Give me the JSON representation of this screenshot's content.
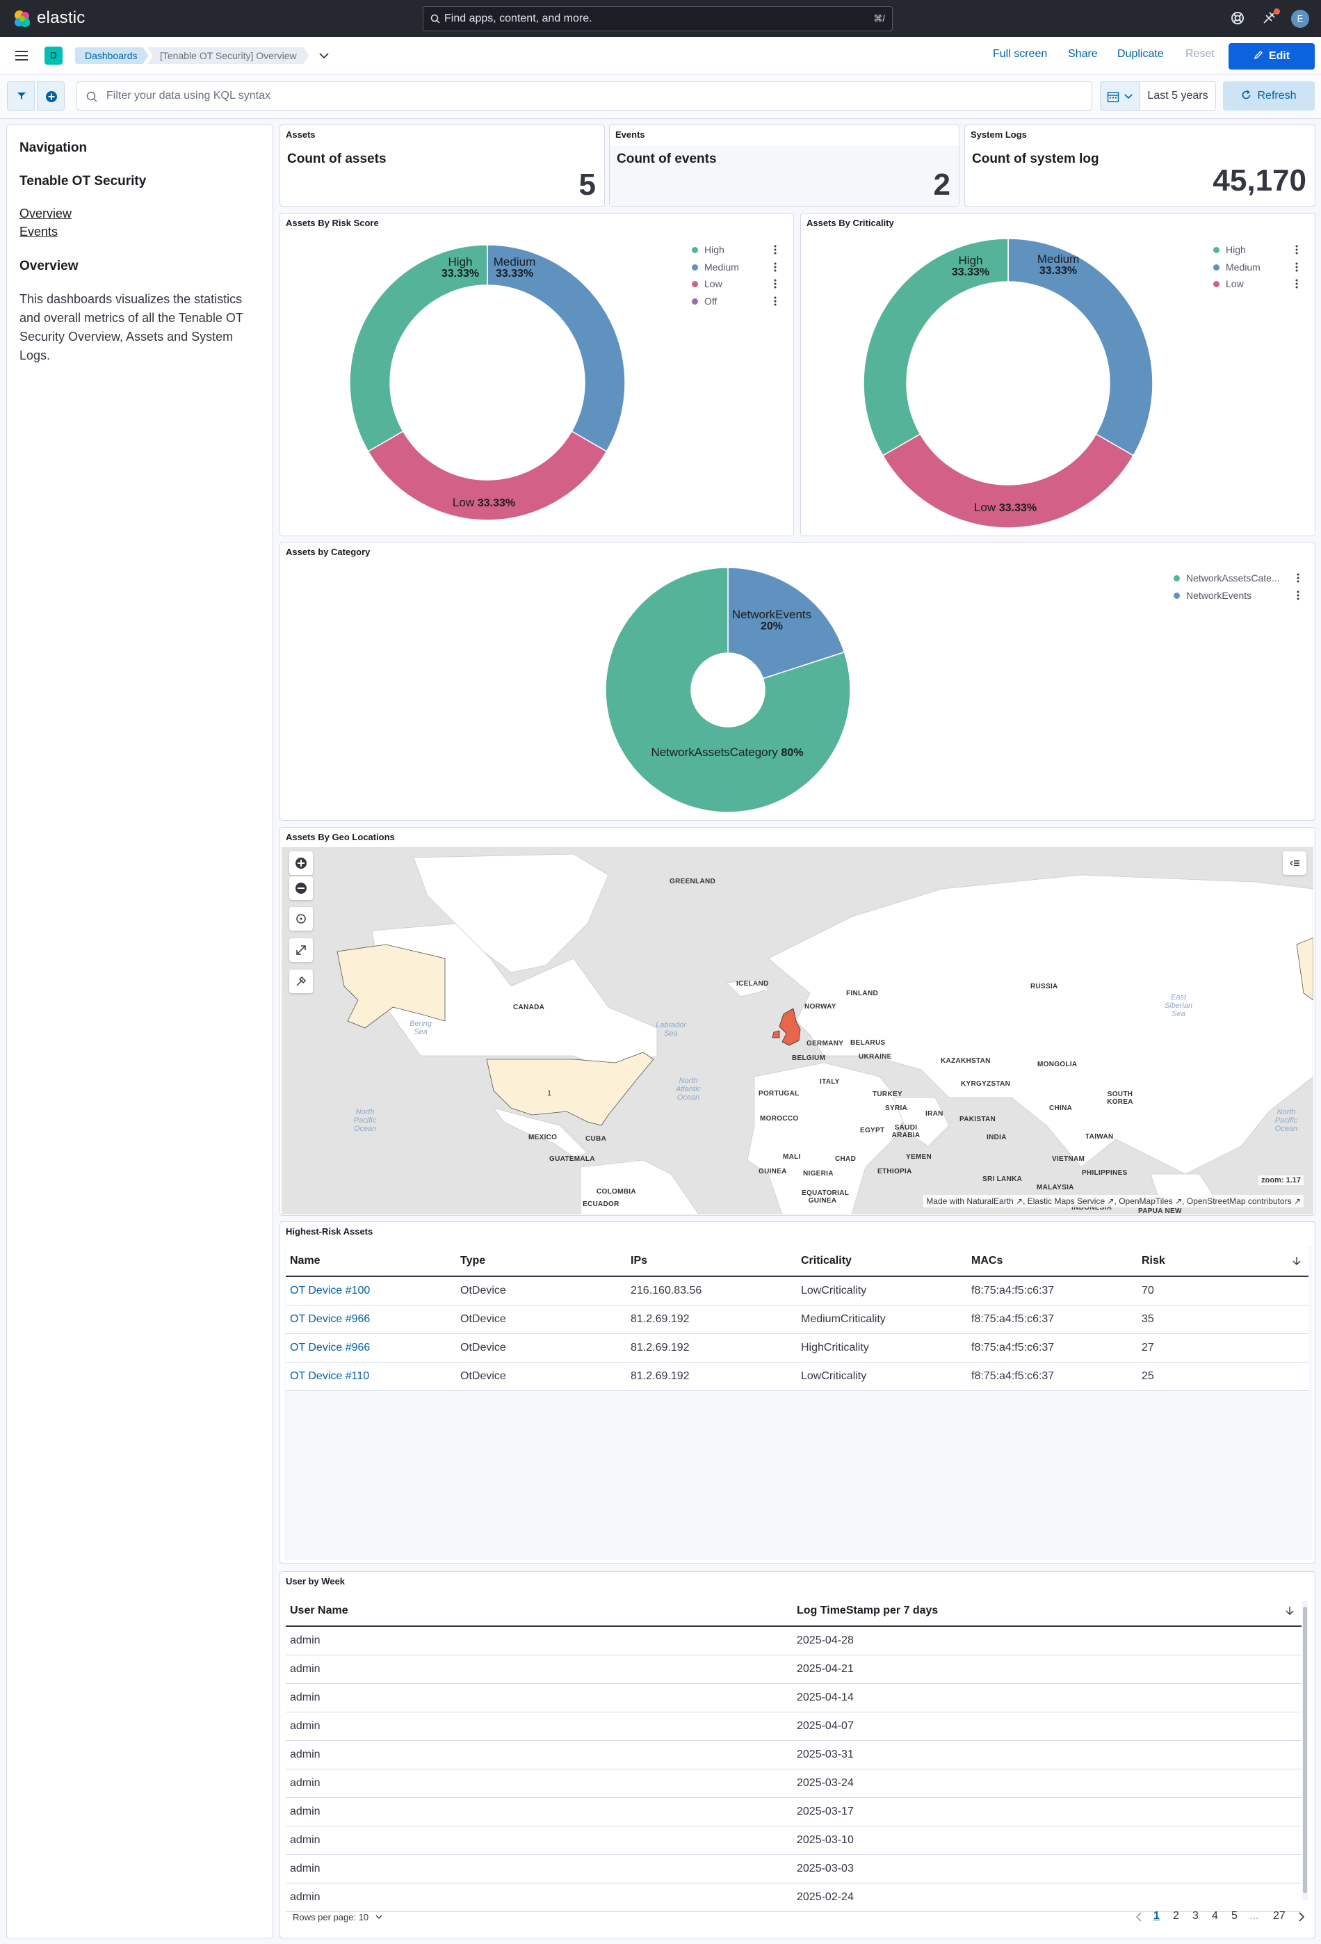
{
  "topbar": {
    "brand": "elastic",
    "search_placeholder": "Find apps, content, and more.",
    "search_shortcut": "⌘/",
    "avatar_initial": "E"
  },
  "header": {
    "app_badge": "D",
    "breadcrumbs": [
      "Dashboards",
      "[Tenable OT Security] Overview"
    ],
    "actions": {
      "fullscreen": "Full screen",
      "share": "Share",
      "duplicate": "Duplicate",
      "reset": "Reset",
      "edit": "Edit"
    }
  },
  "query": {
    "placeholder": "Filter your data using KQL syntax",
    "time_range": "Last 5 years",
    "refresh": "Refresh"
  },
  "nav_panel": {
    "heading": "Navigation",
    "subheading": "Tenable OT Security",
    "links": [
      "Overview",
      "Events"
    ],
    "section_title": "Overview",
    "description": "This dashboards visualizes the statistics and overall metrics of all the Tenable OT Security Overview, Assets and System Logs."
  },
  "metrics": [
    {
      "panel_title": "Assets",
      "label": "Count of assets",
      "value": "5"
    },
    {
      "panel_title": "Events",
      "label": "Count of events",
      "value": "2"
    },
    {
      "panel_title": "System Logs",
      "label": "Count of system log",
      "value": "45,170"
    }
  ],
  "colors": {
    "high": "#54b399",
    "medium": "#6092c0",
    "low": "#d36086",
    "off": "#9170b8",
    "accent": "#0b64dd",
    "link": "#0061a6"
  },
  "chart_data": [
    {
      "type": "pie",
      "title": "Assets By Risk Score",
      "slices": [
        {
          "label": "High",
          "value": 33.33,
          "pct": "33.33%"
        },
        {
          "label": "Medium",
          "value": 33.33,
          "pct": "33.33%"
        },
        {
          "label": "Low",
          "value": 33.33,
          "pct": "33.33%"
        }
      ],
      "legend": [
        "High",
        "Medium",
        "Low",
        "Off"
      ],
      "legend_position": "top-right"
    },
    {
      "type": "pie",
      "title": "Assets By Criticality",
      "slices": [
        {
          "label": "High",
          "value": 33.33,
          "pct": "33.33%"
        },
        {
          "label": "Medium",
          "value": 33.33,
          "pct": "33.33%"
        },
        {
          "label": "Low",
          "value": 33.33,
          "pct": "33.33%"
        }
      ],
      "legend": [
        "High",
        "Medium",
        "Low"
      ],
      "legend_position": "top-right"
    },
    {
      "type": "pie",
      "title": "Assets by Category",
      "slices": [
        {
          "label": "NetworkEvents",
          "value": 20,
          "pct": "20%"
        },
        {
          "label": "NetworkAssetsCategory",
          "value": 80,
          "pct": "80%"
        }
      ],
      "legend": [
        "NetworkAssetsCate...",
        "NetworkEvents"
      ],
      "legend_position": "top-right"
    }
  ],
  "map": {
    "title": "Assets By Geo Locations",
    "zoom_text": "zoom: 1.17",
    "us_count": "1",
    "attribution": [
      "Made with NaturalEarth",
      "Elastic Maps Service",
      "OpenMapTiles",
      "OpenStreetMap contributors"
    ],
    "labels": [
      "GREENLAND",
      "ICELAND",
      "FINLAND",
      "NORWAY",
      "RUSSIA",
      "CANADA",
      "GERMANY",
      "BELARUS",
      "BELGIUM",
      "UKRAINE",
      "KAZAKHSTAN",
      "MONGOLIA",
      "KYRGYZSTAN",
      "PORTUGAL",
      "ITALY",
      "TURKEY",
      "SYRIA",
      "CHINA",
      "SOUTH KOREA",
      "IRAN",
      "PAKISTAN",
      "MOROCCO",
      "EGYPT",
      "SAUDI ARABIA",
      "INDIA",
      "TAIWAN",
      "MEXICO",
      "CUBA",
      "GUATEMALA",
      "MALI",
      "CHAD",
      "YEMEN",
      "VIETNAM",
      "GUINEA",
      "NIGERIA",
      "ETHIOPIA",
      "PHILIPPINES",
      "SRI LANKA",
      "MALAYSIA",
      "EQUATORIAL GUINEA",
      "COLOMBIA",
      "ECUADOR",
      "INDONESIA",
      "PAPUA NEW"
    ],
    "oceans": [
      "Labrador Sea",
      "North Atlantic Ocean",
      "North Pacific Ocean",
      "North Pacific Ocean",
      "Bering Sea",
      "East Siberian Sea"
    ]
  },
  "risk_table": {
    "title": "Highest-Risk Assets",
    "columns": [
      "Name",
      "Type",
      "IPs",
      "Criticality",
      "MACs",
      "Risk"
    ],
    "rows": [
      [
        "OT Device #100",
        "OtDevice",
        "216.160.83.56",
        "LowCriticality",
        "f8:75:a4:f5:c6:37",
        "70"
      ],
      [
        "OT Device #966",
        "OtDevice",
        "81.2.69.192",
        "MediumCriticality",
        "f8:75:a4:f5:c6:37",
        "35"
      ],
      [
        "OT Device #966",
        "OtDevice",
        "81.2.69.192",
        "HighCriticality",
        "f8:75:a4:f5:c6:37",
        "27"
      ],
      [
        "OT Device #110",
        "OtDevice",
        "81.2.69.192",
        "LowCriticality",
        "f8:75:a4:f5:c6:37",
        "25"
      ]
    ]
  },
  "user_table": {
    "title": "User by Week",
    "columns": [
      "User Name",
      "Log TimeStamp per 7 days"
    ],
    "rows": [
      [
        "admin",
        "2025-04-28"
      ],
      [
        "admin",
        "2025-04-21"
      ],
      [
        "admin",
        "2025-04-14"
      ],
      [
        "admin",
        "2025-04-07"
      ],
      [
        "admin",
        "2025-03-31"
      ],
      [
        "admin",
        "2025-03-24"
      ],
      [
        "admin",
        "2025-03-17"
      ],
      [
        "admin",
        "2025-03-10"
      ],
      [
        "admin",
        "2025-03-03"
      ],
      [
        "admin",
        "2025-02-24"
      ]
    ],
    "rows_per_page": "Rows per page: 10",
    "pages": [
      "1",
      "2",
      "3",
      "4",
      "5",
      "...",
      "27"
    ],
    "current_page": "1"
  }
}
